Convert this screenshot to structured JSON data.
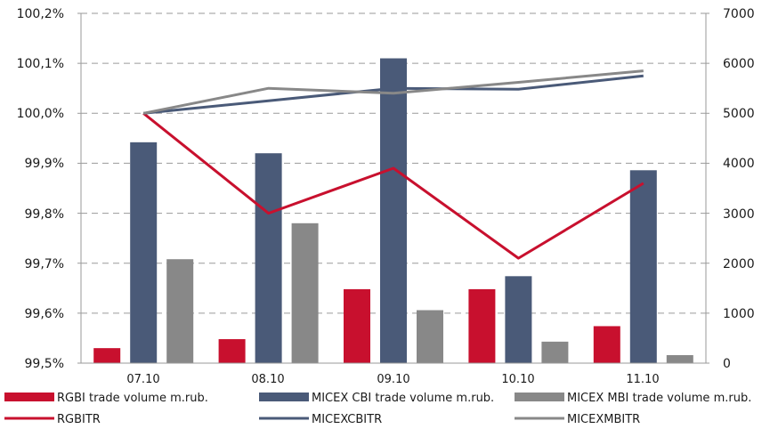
{
  "chart_data": {
    "type": "bar",
    "categories": [
      "07.10",
      "08.10",
      "09.10",
      "10.10",
      "11.10"
    ],
    "y_left": {
      "ticks": [
        "100,2%",
        "100,1%",
        "100,0%",
        "99,9%",
        "99,8%",
        "99,7%",
        "99,6%",
        "99,5%"
      ],
      "min": 99.5,
      "max": 100.2
    },
    "y_right": {
      "ticks": [
        "7000",
        "6000",
        "5000",
        "4000",
        "3000",
        "2000",
        "1000",
        "0"
      ],
      "min": 0,
      "max": 7000
    },
    "grid": "dashed horizontal",
    "legend_position": "bottom",
    "bar_series": [
      {
        "name": "RGBI trade volume m.rub.",
        "color": "#c8102e",
        "values": [
          300,
          480,
          1480,
          1480,
          740
        ]
      },
      {
        "name": "MICEX CBI trade volume m.rub.",
        "color": "#4a5a78",
        "values": [
          4420,
          4200,
          6100,
          1740,
          3860
        ]
      },
      {
        "name": "MICEX MBI trade volume m.rub.",
        "color": "#888888",
        "values": [
          2080,
          2800,
          1060,
          430,
          160
        ]
      }
    ],
    "line_series": [
      {
        "name": "RGBITR",
        "color": "#c8102e",
        "values": [
          100.0,
          99.8,
          99.89,
          99.71,
          99.86
        ]
      },
      {
        "name": "MICEXCBITR",
        "color": "#4a5a78",
        "values": [
          100.0,
          100.025,
          100.05,
          100.048,
          100.075
        ]
      },
      {
        "name": "MICEXMBITR",
        "color": "#888888",
        "values": [
          100.0,
          100.05,
          100.04,
          100.062,
          100.085
        ]
      }
    ]
  }
}
